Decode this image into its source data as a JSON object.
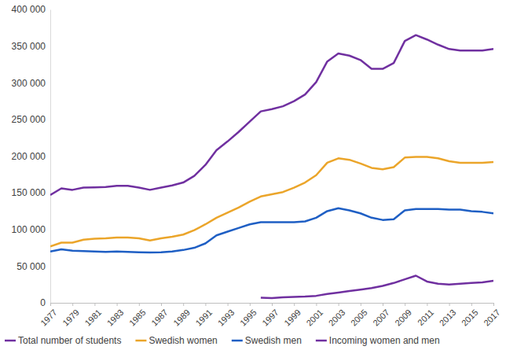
{
  "chart_data": {
    "type": "line",
    "x": [
      1977,
      1978,
      1979,
      1980,
      1981,
      1982,
      1983,
      1984,
      1985,
      1986,
      1987,
      1988,
      1989,
      1990,
      1991,
      1992,
      1993,
      1994,
      1995,
      1996,
      1997,
      1998,
      1999,
      2000,
      2001,
      2002,
      2003,
      2004,
      2005,
      2006,
      2007,
      2008,
      2009,
      2010,
      2011,
      2012,
      2013,
      2014,
      2015,
      2016,
      2017
    ],
    "series": [
      {
        "name": "Total number of students",
        "color": "#7030a0",
        "values": [
          147000,
          156000,
          154000,
          157000,
          157500,
          158000,
          159500,
          159500,
          157000,
          154000,
          157000,
          160000,
          164000,
          173000,
          188000,
          208000,
          220000,
          233000,
          247000,
          261000,
          264000,
          268000,
          275000,
          284000,
          301000,
          329000,
          340000,
          337000,
          331000,
          319000,
          319000,
          327000,
          357000,
          365000,
          359000,
          352000,
          346000,
          344000,
          344000,
          344000,
          346000
        ]
      },
      {
        "name": "Swedish women",
        "color": "#eba52a",
        "values": [
          77000,
          82000,
          82000,
          86000,
          87500,
          88000,
          89000,
          89000,
          88000,
          85000,
          88000,
          90000,
          93000,
          99000,
          107000,
          116000,
          123000,
          130000,
          138000,
          145000,
          148000,
          151000,
          157000,
          164000,
          174000,
          191000,
          197000,
          195000,
          190000,
          184000,
          182000,
          185000,
          198000,
          199000,
          199000,
          197000,
          193000,
          191000,
          191000,
          191000,
          192000
        ]
      },
      {
        "name": "Swedish men",
        "color": "#1f5fc4",
        "values": [
          70000,
          73000,
          71000,
          70500,
          70000,
          69500,
          70000,
          69500,
          69000,
          68500,
          69000,
          70000,
          72000,
          75000,
          81000,
          92000,
          97000,
          102000,
          107000,
          110000,
          110000,
          110000,
          110000,
          111000,
          116000,
          125000,
          129000,
          126000,
          122000,
          116000,
          113000,
          114000,
          126000,
          128000,
          128000,
          128000,
          127000,
          127000,
          125000,
          124000,
          122000
        ]
      },
      {
        "name": "Incoming women and men",
        "color": "#7030a0",
        "values": [
          null,
          null,
          null,
          null,
          null,
          null,
          null,
          null,
          null,
          null,
          null,
          null,
          null,
          null,
          null,
          null,
          null,
          null,
          null,
          7000,
          6500,
          7500,
          8000,
          8500,
          9500,
          12000,
          14000,
          16000,
          18000,
          20000,
          23000,
          27000,
          32000,
          37000,
          29000,
          26000,
          25000,
          26000,
          27000,
          28000,
          30000
        ]
      }
    ],
    "xlim": [
      1977,
      2017
    ],
    "xticks": [
      1977,
      1979,
      1981,
      1983,
      1985,
      1987,
      1989,
      1991,
      1993,
      1995,
      1997,
      1999,
      2001,
      2003,
      2005,
      2007,
      2009,
      2011,
      2013,
      2015,
      2017
    ],
    "ylim": [
      0,
      400000
    ],
    "yticks": [
      0,
      {
        "value": 50000,
        "label": "50 000"
      },
      {
        "value": 100000,
        "label": "100 000"
      },
      {
        "value": 150000,
        "label": "150 000"
      },
      {
        "value": 200000,
        "label": "200 000"
      },
      {
        "value": 250000,
        "label": "250 000"
      },
      {
        "value": 300000,
        "label": "300 000"
      },
      {
        "value": 350000,
        "label": "350 000"
      },
      {
        "value": 400000,
        "label": "400 000"
      }
    ],
    "grid": false,
    "legend": "bottom"
  }
}
